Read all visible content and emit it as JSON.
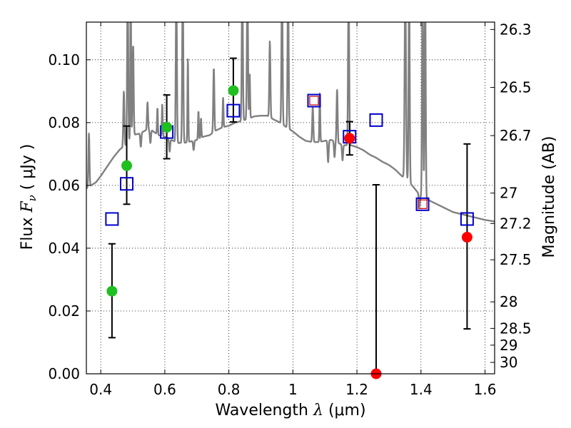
{
  "chart_data": {
    "type": "scatter",
    "title": "",
    "xlabel_prefix": "Wavelength",
    "xlabel_symbol": "λ",
    "xlabel_unit": "(μm)",
    "ylabel_prefix": "Flux",
    "ylabel_symbol": "F",
    "ylabel_subscript": "ν",
    "ylabel_unit": "( μJy )",
    "y2label": "Magnitude (AB)",
    "xlim": [
      0.355,
      1.63
    ],
    "ylim": [
      0.0,
      0.112
    ],
    "x_ticks": [
      0.4,
      0.6,
      0.8,
      1.0,
      1.2,
      1.4,
      1.6
    ],
    "x_tick_labels": [
      "0.4",
      "0.6",
      "0.8",
      "1",
      "1.2",
      "1.4",
      "1.6"
    ],
    "y_ticks": [
      0.0,
      0.02,
      0.04,
      0.06,
      0.08,
      0.1
    ],
    "y_tick_labels": [
      "0.00",
      "0.02",
      "0.04",
      "0.06",
      "0.08",
      "0.10"
    ],
    "mag_ticks": [
      26.3,
      26.5,
      26.7,
      27,
      27.2,
      27.5,
      28,
      28.5,
      29,
      30
    ],
    "mag_tick_labels": [
      "26.3",
      "26.5",
      "26.7",
      "27",
      "27.2",
      "27.5",
      "28",
      "28.5",
      "29",
      "30"
    ],
    "grid": true,
    "colors": {
      "observed": "#1fbf1f",
      "detected_red": "#ff0000",
      "model": "#0000cc",
      "spectrum": "#808080",
      "errorbar": "#000000",
      "red_square": "#cc0000"
    },
    "observed_points": [
      {
        "x": 0.435,
        "y": 0.0263,
        "yerr_low": 0.0148,
        "yerr_high": 0.0151,
        "color": "green"
      },
      {
        "x": 0.481,
        "y": 0.0663,
        "yerr_low": 0.0123,
        "yerr_high": 0.0126,
        "color": "green"
      },
      {
        "x": 0.606,
        "y": 0.0785,
        "yerr_low": 0.01,
        "yerr_high": 0.0103,
        "color": "green"
      },
      {
        "x": 0.814,
        "y": 0.0902,
        "yerr_low": 0.01,
        "yerr_high": 0.0103,
        "color": "green"
      },
      {
        "x": 1.177,
        "y": 0.075,
        "yerr_low": 0.0053,
        "yerr_high": 0.0053,
        "color": "red"
      },
      {
        "x": 1.26,
        "y": 0.0,
        "yerr_low": 0.0,
        "yerr_high": 0.0602,
        "color": "red"
      },
      {
        "x": 1.544,
        "y": 0.0435,
        "yerr_low": 0.0292,
        "yerr_high": 0.0297,
        "color": "red"
      }
    ],
    "model_points": [
      {
        "x": 0.435,
        "y": 0.0493,
        "inner_red": false
      },
      {
        "x": 0.481,
        "y": 0.0605,
        "inner_red": false
      },
      {
        "x": 0.606,
        "y": 0.077,
        "inner_red": false
      },
      {
        "x": 0.814,
        "y": 0.0838,
        "inner_red": false
      },
      {
        "x": 1.066,
        "y": 0.087,
        "inner_red": true
      },
      {
        "x": 1.177,
        "y": 0.0755,
        "inner_red": false
      },
      {
        "x": 1.26,
        "y": 0.0808,
        "inner_red": false
      },
      {
        "x": 1.405,
        "y": 0.054,
        "inner_red": true
      },
      {
        "x": 1.544,
        "y": 0.0493,
        "inner_red": false
      }
    ],
    "spectrum": {
      "continuum": [
        [
          0.355,
          0.059
        ],
        [
          0.37,
          0.06
        ],
        [
          0.385,
          0.061
        ],
        [
          0.4,
          0.063
        ],
        [
          0.42,
          0.066
        ],
        [
          0.44,
          0.069
        ],
        [
          0.46,
          0.0715
        ],
        [
          0.48,
          0.073
        ],
        [
          0.5,
          0.076
        ],
        [
          0.52,
          0.0765
        ],
        [
          0.54,
          0.0775
        ],
        [
          0.56,
          0.0775
        ],
        [
          0.58,
          0.076
        ],
        [
          0.6,
          0.0755
        ],
        [
          0.62,
          0.0745
        ],
        [
          0.64,
          0.0735
        ],
        [
          0.66,
          0.0735
        ],
        [
          0.68,
          0.074
        ],
        [
          0.7,
          0.0745
        ],
        [
          0.72,
          0.0755
        ],
        [
          0.74,
          0.076
        ],
        [
          0.76,
          0.0775
        ],
        [
          0.78,
          0.0785
        ],
        [
          0.8,
          0.079
        ],
        [
          0.82,
          0.08
        ],
        [
          0.84,
          0.0805
        ],
        [
          0.86,
          0.0812
        ],
        [
          0.88,
          0.082
        ],
        [
          0.9,
          0.0822
        ],
        [
          0.92,
          0.0822
        ],
        [
          0.94,
          0.081
        ],
        [
          0.96,
          0.08
        ],
        [
          0.98,
          0.0785
        ],
        [
          1.0,
          0.0772
        ],
        [
          1.02,
          0.0755
        ],
        [
          1.04,
          0.0742
        ],
        [
          1.06,
          0.0738
        ],
        [
          1.08,
          0.0738
        ],
        [
          1.1,
          0.0742
        ],
        [
          1.12,
          0.0745
        ],
        [
          1.14,
          0.0735
        ],
        [
          1.16,
          0.0728
        ],
        [
          1.18,
          0.0728
        ],
        [
          1.2,
          0.0722
        ],
        [
          1.22,
          0.0712
        ],
        [
          1.24,
          0.0698
        ],
        [
          1.26,
          0.0688
        ],
        [
          1.28,
          0.0675
        ],
        [
          1.3,
          0.0665
        ],
        [
          1.32,
          0.065
        ],
        [
          1.34,
          0.063
        ],
        [
          1.36,
          0.0615
        ],
        [
          1.38,
          0.059
        ],
        [
          1.4,
          0.0565
        ],
        [
          1.42,
          0.0555
        ],
        [
          1.44,
          0.0545
        ],
        [
          1.46,
          0.0535
        ],
        [
          1.48,
          0.0525
        ],
        [
          1.5,
          0.0515
        ],
        [
          1.52,
          0.051
        ],
        [
          1.54,
          0.0505
        ],
        [
          1.56,
          0.05
        ],
        [
          1.58,
          0.0495
        ],
        [
          1.6,
          0.049
        ],
        [
          1.63,
          0.0485
        ]
      ],
      "lines": [
        {
          "x": 0.363,
          "peak": 0.0765,
          "width": 0.004
        },
        {
          "x": 0.472,
          "peak": 0.09,
          "width": 0.004
        },
        {
          "x": 0.484,
          "peak": 0.125,
          "width": 0.004
        },
        {
          "x": 0.4935,
          "peak": 0.125,
          "width": 0.003
        },
        {
          "x": 0.501,
          "peak": 0.105,
          "width": 0.004
        },
        {
          "x": 0.546,
          "peak": 0.0865,
          "width": 0.004
        },
        {
          "x": 0.577,
          "peak": 0.0848,
          "width": 0.003
        },
        {
          "x": 0.592,
          "peak": 0.0858,
          "width": 0.003
        },
        {
          "x": 0.636,
          "peak": 0.125,
          "width": 0.004
        },
        {
          "x": 0.656,
          "peak": 0.125,
          "width": 0.004
        },
        {
          "x": 0.672,
          "peak": 0.1005,
          "width": 0.003
        },
        {
          "x": 0.705,
          "peak": 0.0838,
          "width": 0.003
        },
        {
          "x": 0.713,
          "peak": 0.0815,
          "width": 0.003
        },
        {
          "x": 0.753,
          "peak": 0.0975,
          "width": 0.004
        },
        {
          "x": 0.782,
          "peak": 0.088,
          "width": 0.003
        },
        {
          "x": 0.842,
          "peak": 0.125,
          "width": 0.004
        },
        {
          "x": 0.858,
          "peak": 0.125,
          "width": 0.004
        },
        {
          "x": 0.865,
          "peak": 0.096,
          "width": 0.003
        },
        {
          "x": 0.928,
          "peak": 0.106,
          "width": 0.004
        },
        {
          "x": 0.966,
          "peak": 0.125,
          "width": 0.004
        },
        {
          "x": 0.985,
          "peak": 0.125,
          "width": 0.004
        },
        {
          "x": 1.062,
          "peak": 0.085,
          "width": 0.004
        },
        {
          "x": 1.084,
          "peak": 0.0895,
          "width": 0.003
        },
        {
          "x": 1.138,
          "peak": 0.0905,
          "width": 0.004
        },
        {
          "x": 1.174,
          "peak": 0.125,
          "width": 0.004
        },
        {
          "x": 1.351,
          "peak": 0.125,
          "width": 0.005
        },
        {
          "x": 1.363,
          "peak": 0.125,
          "width": 0.004
        },
        {
          "x": 1.405,
          "peak": 0.125,
          "width": 0.004
        },
        {
          "x": 1.413,
          "peak": 0.125,
          "width": 0.004
        }
      ],
      "dips": [
        {
          "x": 0.525,
          "depth": 0.0045,
          "width": 0.004
        },
        {
          "x": 0.555,
          "depth": 0.004,
          "width": 0.004
        },
        {
          "x": 0.615,
          "depth": 0.004,
          "width": 0.004
        },
        {
          "x": 0.69,
          "depth": 0.003,
          "width": 0.004
        },
        {
          "x": 1.11,
          "depth": 0.007,
          "width": 0.004
        },
        {
          "x": 1.13,
          "depth": 0.005,
          "width": 0.004
        },
        {
          "x": 1.155,
          "depth": 0.005,
          "width": 0.004
        },
        {
          "x": 1.395,
          "depth": 0.004,
          "width": 0.004
        }
      ]
    }
  }
}
